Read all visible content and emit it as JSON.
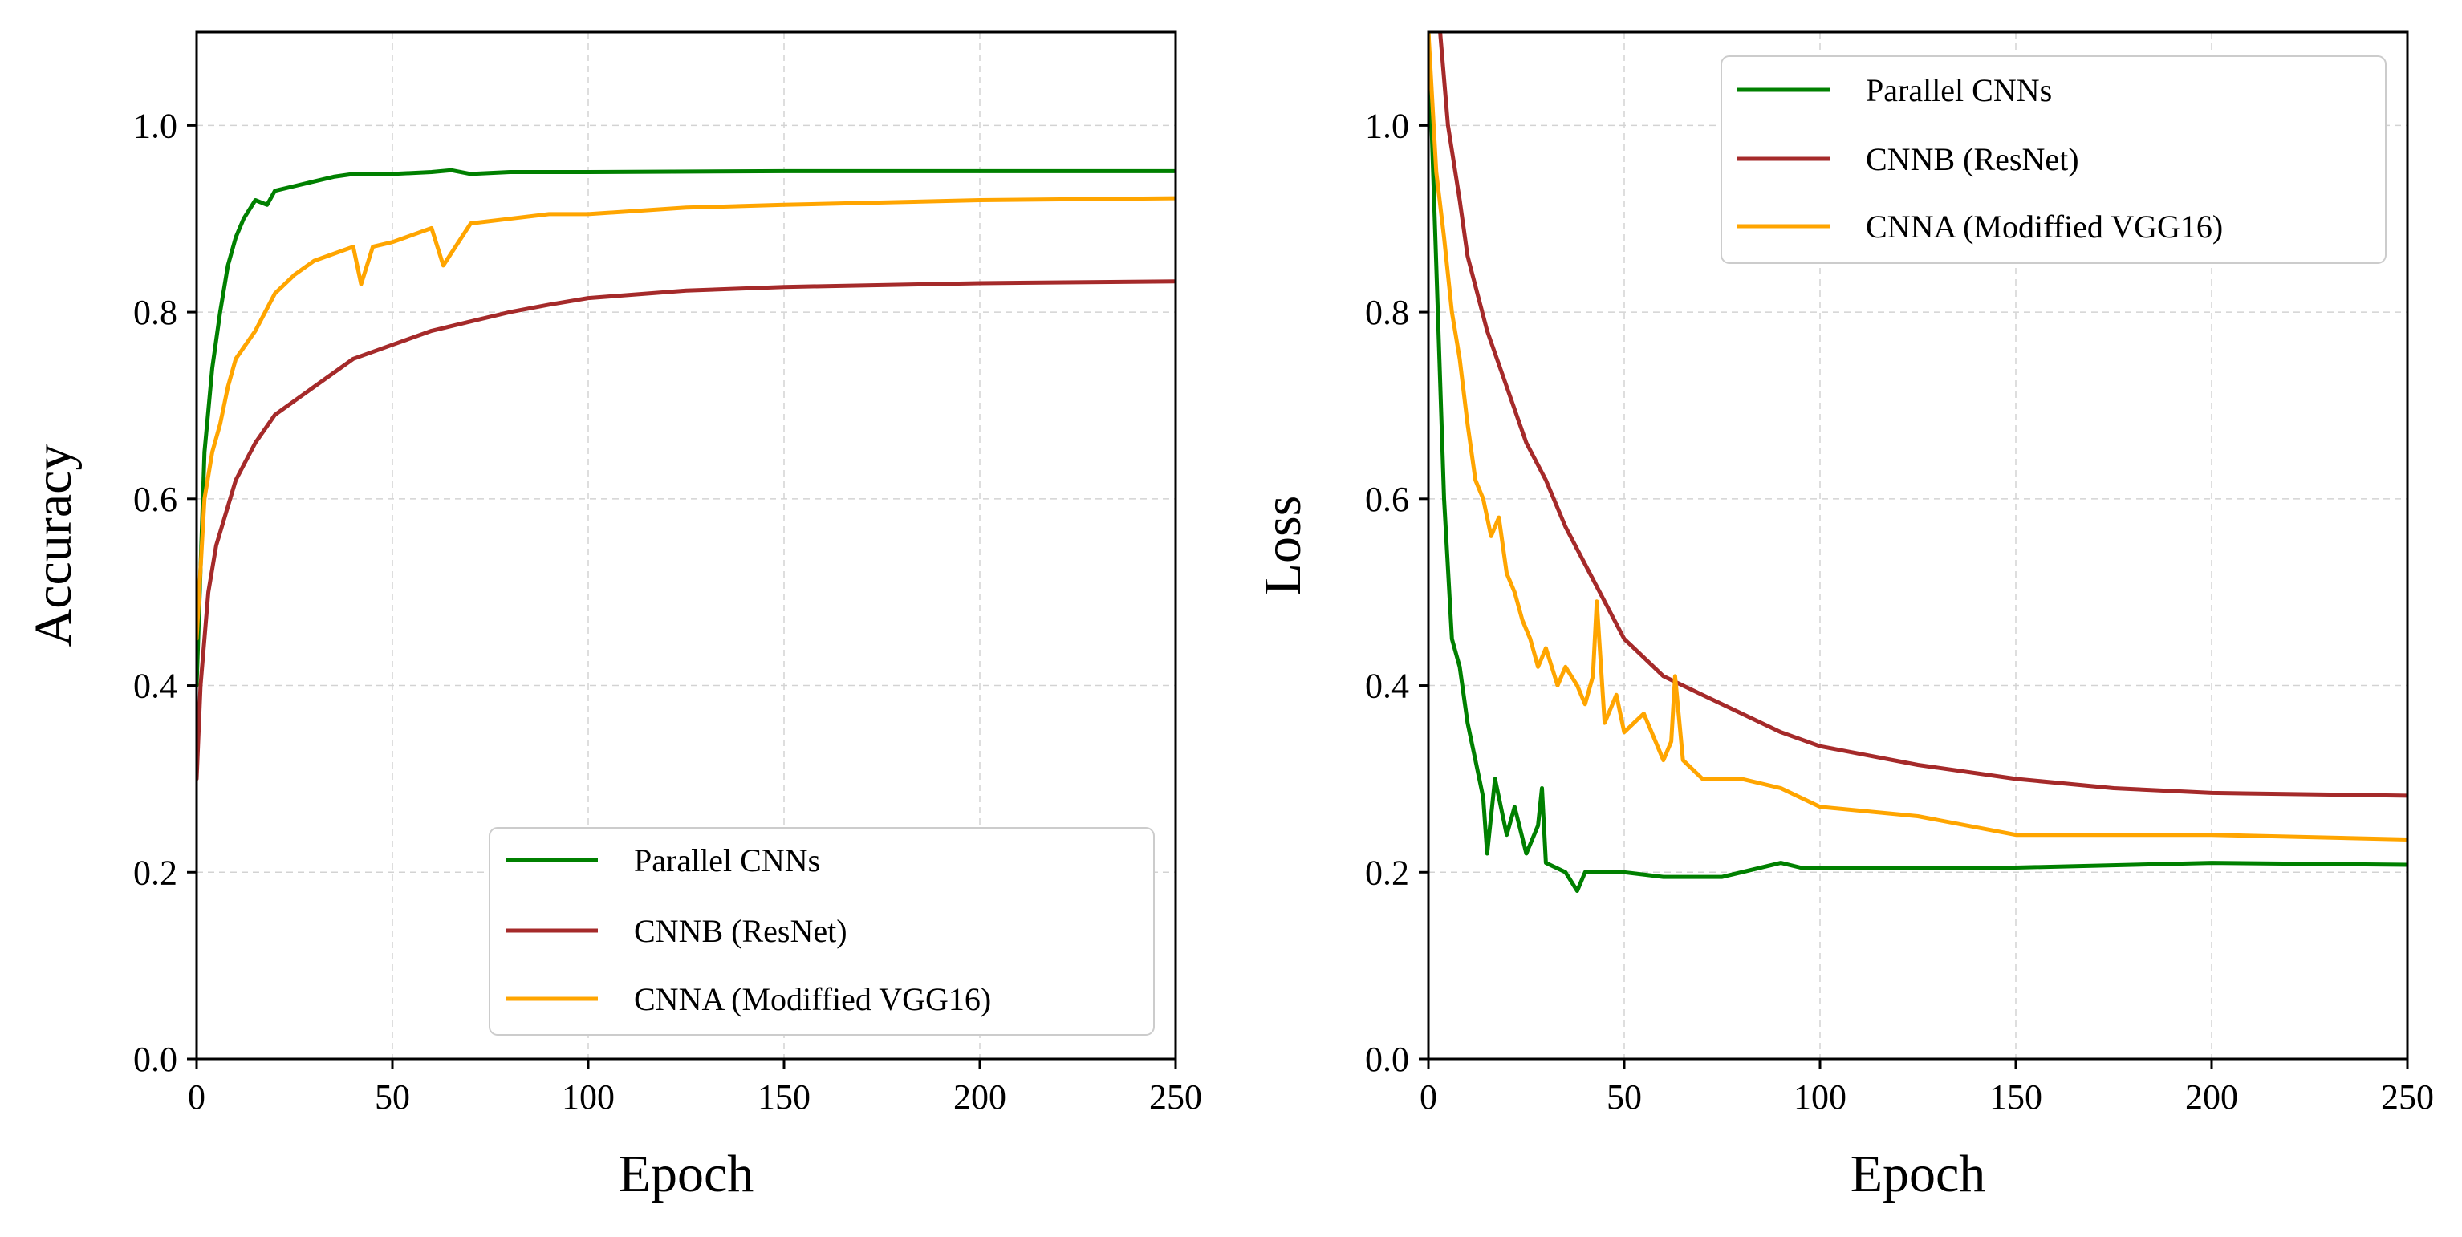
{
  "colors": {
    "parallel": "#008000",
    "cnnb": "#a52a2a",
    "cnna": "#ffa500",
    "grid": "#d3d3d3"
  },
  "chart_data": [
    {
      "type": "line",
      "xlabel": "Epoch",
      "ylabel": "Accuracy",
      "xlim": [
        0,
        250
      ],
      "ylim": [
        0,
        1.1
      ],
      "xticks": [
        0,
        50,
        100,
        150,
        200,
        250
      ],
      "yticks": [
        0.0,
        0.2,
        0.4,
        0.6,
        0.8,
        1.0
      ],
      "xtick_labels": [
        "0",
        "50",
        "100",
        "150",
        "200",
        "250"
      ],
      "ytick_labels": [
        "0.0",
        "0.2",
        "0.4",
        "0.6",
        "0.8",
        "1.0"
      ],
      "grid": true,
      "legend_position": "lower-right",
      "series": [
        {
          "name": "Parallel CNNs",
          "color": "#008000",
          "x": [
            0,
            2,
            4,
            6,
            8,
            10,
            12,
            15,
            18,
            20,
            25,
            30,
            35,
            40,
            50,
            60,
            65,
            70,
            80,
            100,
            150,
            200,
            250
          ],
          "y": [
            0.4,
            0.65,
            0.74,
            0.8,
            0.85,
            0.88,
            0.9,
            0.92,
            0.915,
            0.93,
            0.935,
            0.94,
            0.945,
            0.948,
            0.948,
            0.95,
            0.952,
            0.948,
            0.95,
            0.95,
            0.951,
            0.951,
            0.951
          ]
        },
        {
          "name": "CNNB (ResNet)",
          "color": "#a52a2a",
          "x": [
            0,
            1,
            3,
            5,
            10,
            15,
            20,
            30,
            40,
            50,
            60,
            70,
            80,
            90,
            100,
            125,
            150,
            200,
            250
          ],
          "y": [
            0.3,
            0.4,
            0.5,
            0.55,
            0.62,
            0.66,
            0.69,
            0.72,
            0.75,
            0.765,
            0.78,
            0.79,
            0.8,
            0.808,
            0.815,
            0.823,
            0.827,
            0.831,
            0.833
          ]
        },
        {
          "name": "CNNA (Modiffied VGG16)",
          "color": "#ffa500",
          "x": [
            0,
            2,
            4,
            6,
            8,
            10,
            15,
            20,
            25,
            30,
            40,
            42,
            45,
            50,
            60,
            63,
            70,
            80,
            90,
            100,
            125,
            150,
            200,
            250
          ],
          "y": [
            0.45,
            0.6,
            0.65,
            0.68,
            0.72,
            0.75,
            0.78,
            0.82,
            0.84,
            0.855,
            0.87,
            0.83,
            0.87,
            0.875,
            0.89,
            0.85,
            0.895,
            0.9,
            0.905,
            0.905,
            0.912,
            0.915,
            0.92,
            0.922
          ]
        }
      ]
    },
    {
      "type": "line",
      "xlabel": "Epoch",
      "ylabel": "Loss",
      "xlim": [
        0,
        250
      ],
      "ylim": [
        0,
        1.1
      ],
      "xticks": [
        0,
        50,
        100,
        150,
        200,
        250
      ],
      "yticks": [
        0.0,
        0.2,
        0.4,
        0.6,
        0.8,
        1.0
      ],
      "xtick_labels": [
        "0",
        "50",
        "100",
        "150",
        "200",
        "250"
      ],
      "ytick_labels": [
        "0.0",
        "0.2",
        "0.4",
        "0.6",
        "0.8",
        "1.0"
      ],
      "grid": true,
      "legend_position": "upper-right",
      "series": [
        {
          "name": "Parallel CNNs",
          "color": "#008000",
          "x": [
            0,
            2,
            4,
            6,
            8,
            10,
            12,
            14,
            15,
            17,
            20,
            22,
            25,
            28,
            29,
            30,
            35,
            38,
            40,
            50,
            60,
            75,
            90,
            95,
            100,
            125,
            150,
            200,
            250
          ],
          "y": [
            1.1,
            0.85,
            0.6,
            0.45,
            0.42,
            0.36,
            0.32,
            0.28,
            0.22,
            0.3,
            0.24,
            0.27,
            0.22,
            0.25,
            0.29,
            0.21,
            0.2,
            0.18,
            0.2,
            0.2,
            0.195,
            0.195,
            0.21,
            0.205,
            0.205,
            0.205,
            0.205,
            0.21,
            0.208
          ]
        },
        {
          "name": "CNNB (ResNet)",
          "color": "#a52a2a",
          "x": [
            0,
            3,
            5,
            8,
            10,
            15,
            20,
            25,
            30,
            35,
            40,
            45,
            50,
            55,
            60,
            70,
            80,
            90,
            100,
            125,
            150,
            175,
            200,
            250
          ],
          "y": [
            1.3,
            1.1,
            1.0,
            0.92,
            0.86,
            0.78,
            0.72,
            0.66,
            0.62,
            0.57,
            0.53,
            0.49,
            0.45,
            0.43,
            0.41,
            0.39,
            0.37,
            0.35,
            0.335,
            0.315,
            0.3,
            0.29,
            0.285,
            0.282
          ]
        },
        {
          "name": "CNNA (Modiffied VGG16)",
          "color": "#ffa500",
          "x": [
            0,
            2,
            4,
            6,
            8,
            10,
            12,
            14,
            16,
            18,
            20,
            22,
            24,
            26,
            28,
            30,
            33,
            35,
            38,
            40,
            42,
            43,
            45,
            48,
            50,
            55,
            60,
            62,
            63,
            65,
            70,
            80,
            90,
            100,
            125,
            150,
            200,
            250
          ],
          "y": [
            1.1,
            0.95,
            0.88,
            0.8,
            0.75,
            0.68,
            0.62,
            0.6,
            0.56,
            0.58,
            0.52,
            0.5,
            0.47,
            0.45,
            0.42,
            0.44,
            0.4,
            0.42,
            0.4,
            0.38,
            0.41,
            0.49,
            0.36,
            0.39,
            0.35,
            0.37,
            0.32,
            0.34,
            0.41,
            0.32,
            0.3,
            0.3,
            0.29,
            0.27,
            0.26,
            0.24,
            0.24,
            0.235
          ]
        }
      ]
    }
  ]
}
